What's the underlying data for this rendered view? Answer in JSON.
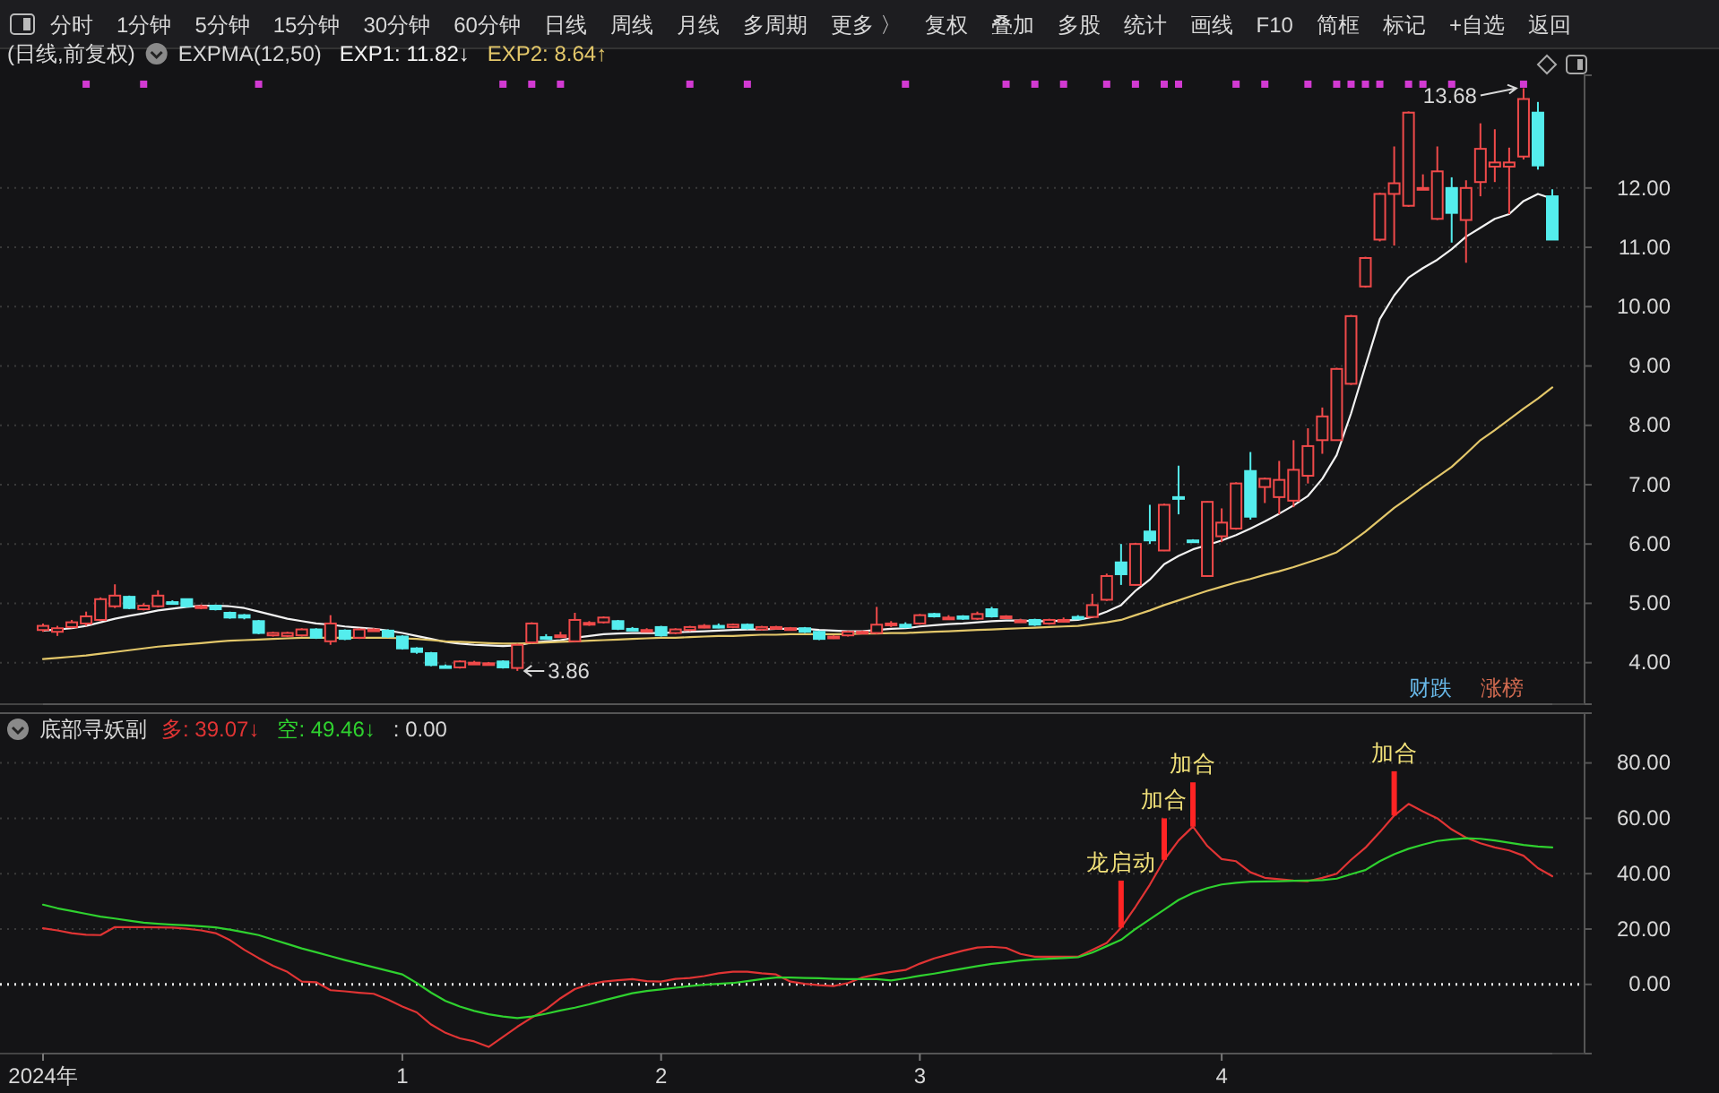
{
  "chart_data": [
    {
      "type": "other",
      "annotations": [
        "分时",
        "1分钟",
        "5分钟",
        "15分钟",
        "30分钟",
        "60分钟",
        "日线",
        "周线",
        "月线",
        "多周期",
        "更多 〉",
        "复权",
        "叠加",
        "多股",
        "统计",
        "画线",
        "F10",
        "简框",
        "标记",
        "+自选",
        "返回"
      ]
    },
    {
      "type": "candlestick",
      "title": "(日线,前复权)",
      "subtitle": "EXPMA(12,50)",
      "legend": "top left",
      "grid": "y",
      "tick_labels": "y",
      "categories": [
        null,
        null,
        null,
        null,
        null,
        null,
        null,
        null,
        null,
        null,
        null,
        null,
        null,
        null,
        null,
        null,
        null,
        null,
        null,
        null,
        null,
        null,
        null,
        null,
        null,
        null,
        null,
        null,
        null,
        null,
        null,
        null,
        null,
        null,
        null,
        null,
        null,
        null,
        null,
        null,
        null,
        null,
        null,
        null,
        null,
        null,
        null,
        null,
        null,
        null,
        null,
        null,
        null,
        null,
        null,
        null,
        null,
        null,
        null,
        null,
        null,
        null,
        null,
        null,
        null,
        null,
        null,
        null,
        null,
        null,
        null,
        null,
        null,
        null,
        null,
        null,
        null,
        null,
        null,
        null,
        null,
        null,
        null,
        null,
        null,
        null,
        null,
        null,
        null,
        null,
        null,
        null,
        null,
        null,
        null,
        null,
        null,
        null,
        null,
        null,
        null,
        null,
        null,
        null,
        null,
        null
      ],
      "ylim": [
        3.3,
        13.9
      ],
      "yticks": [
        {
          "value": 4,
          "label": "4.00"
        },
        {
          "value": 5,
          "label": "5.00"
        },
        {
          "value": 6,
          "label": "6.00"
        },
        {
          "value": 7,
          "label": "7.00"
        },
        {
          "value": 8,
          "label": "8.00"
        },
        {
          "value": 9,
          "label": "9.00"
        },
        {
          "value": 10,
          "label": "10.00"
        },
        {
          "value": 11,
          "label": "11.00"
        },
        {
          "value": 12,
          "label": "12.00"
        }
      ],
      "ohlc": [
        [
          4.55,
          4.66,
          4.52,
          4.62
        ],
        [
          4.52,
          4.62,
          4.45,
          4.58
        ],
        [
          4.6,
          4.72,
          4.58,
          4.68
        ],
        [
          4.66,
          4.86,
          4.62,
          4.78
        ],
        [
          4.72,
          5.1,
          4.7,
          5.07
        ],
        [
          4.95,
          5.32,
          4.92,
          5.13
        ],
        [
          5.11,
          5.13,
          4.9,
          4.92
        ],
        [
          4.9,
          5.0,
          4.88,
          4.96
        ],
        [
          4.95,
          5.22,
          4.93,
          5.13
        ],
        [
          5.02,
          5.05,
          4.98,
          5.01
        ],
        [
          5.07,
          5.08,
          4.93,
          4.95
        ],
        [
          4.92,
          4.98,
          4.9,
          4.95
        ],
        [
          4.96,
          4.98,
          4.88,
          4.9
        ],
        [
          4.84,
          4.86,
          4.74,
          4.76
        ],
        [
          4.8,
          4.82,
          4.73,
          4.76
        ],
        [
          4.7,
          4.72,
          4.48,
          4.5
        ],
        [
          4.46,
          4.52,
          4.44,
          4.5
        ],
        [
          4.45,
          4.52,
          4.43,
          4.5
        ],
        [
          4.46,
          4.58,
          4.44,
          4.56
        ],
        [
          4.56,
          4.58,
          4.4,
          4.42
        ],
        [
          4.36,
          4.8,
          4.3,
          4.66
        ],
        [
          4.54,
          4.56,
          4.38,
          4.4
        ],
        [
          4.42,
          4.58,
          4.4,
          4.56
        ],
        [
          4.55,
          4.58,
          4.53,
          4.56
        ],
        [
          4.54,
          4.56,
          4.42,
          4.44
        ],
        [
          4.44,
          4.46,
          4.22,
          4.24
        ],
        [
          4.24,
          4.26,
          4.15,
          4.18
        ],
        [
          4.16,
          4.18,
          3.94,
          3.96
        ],
        [
          3.94,
          3.97,
          3.91,
          3.93
        ],
        [
          3.92,
          4.04,
          3.9,
          4.02
        ],
        [
          3.99,
          4.03,
          3.97,
          4.0
        ],
        [
          3.97,
          4.01,
          3.95,
          3.99
        ],
        [
          4.02,
          4.04,
          3.9,
          3.92
        ],
        [
          3.91,
          4.32,
          3.86,
          4.3
        ],
        [
          4.34,
          4.68,
          4.32,
          4.66
        ],
        [
          4.43,
          4.48,
          4.39,
          4.42
        ],
        [
          4.45,
          4.52,
          4.42,
          4.46
        ],
        [
          4.36,
          4.84,
          4.34,
          4.72
        ],
        [
          4.66,
          4.7,
          4.62,
          4.67
        ],
        [
          4.68,
          4.78,
          4.66,
          4.76
        ],
        [
          4.7,
          4.72,
          4.55,
          4.57
        ],
        [
          4.57,
          4.6,
          4.54,
          4.56
        ],
        [
          4.54,
          4.58,
          4.52,
          4.55
        ],
        [
          4.6,
          4.62,
          4.44,
          4.46
        ],
        [
          4.5,
          4.58,
          4.48,
          4.56
        ],
        [
          4.55,
          4.62,
          4.53,
          4.6
        ],
        [
          4.6,
          4.65,
          4.58,
          4.62
        ],
        [
          4.62,
          4.66,
          4.58,
          4.61
        ],
        [
          4.6,
          4.66,
          4.58,
          4.64
        ],
        [
          4.64,
          4.66,
          4.56,
          4.58
        ],
        [
          4.56,
          4.62,
          4.54,
          4.6
        ],
        [
          4.58,
          4.62,
          4.56,
          4.6
        ],
        [
          4.56,
          4.6,
          4.54,
          4.58
        ],
        [
          4.58,
          4.6,
          4.5,
          4.52
        ],
        [
          4.52,
          4.54,
          4.38,
          4.4
        ],
        [
          4.42,
          4.46,
          4.4,
          4.44
        ],
        [
          4.46,
          4.54,
          4.44,
          4.52
        ],
        [
          4.5,
          4.54,
          4.48,
          4.52
        ],
        [
          4.5,
          4.94,
          4.48,
          4.64
        ],
        [
          4.64,
          4.7,
          4.6,
          4.66
        ],
        [
          4.64,
          4.68,
          4.58,
          4.6
        ],
        [
          4.66,
          4.82,
          4.64,
          4.8
        ],
        [
          4.82,
          4.84,
          4.76,
          4.78
        ],
        [
          4.74,
          4.8,
          4.72,
          4.76
        ],
        [
          4.78,
          4.8,
          4.72,
          4.74
        ],
        [
          4.74,
          4.86,
          4.72,
          4.82
        ],
        [
          4.9,
          4.94,
          4.76,
          4.78
        ],
        [
          4.76,
          4.8,
          4.74,
          4.78
        ],
        [
          4.7,
          4.74,
          4.68,
          4.71
        ],
        [
          4.72,
          4.74,
          4.62,
          4.64
        ],
        [
          4.66,
          4.74,
          4.64,
          4.72
        ],
        [
          4.7,
          4.76,
          4.68,
          4.72
        ],
        [
          4.77,
          4.8,
          4.74,
          4.76
        ],
        [
          4.77,
          5.16,
          4.77,
          4.97
        ],
        [
          5.06,
          5.5,
          5.04,
          5.46
        ],
        [
          5.69,
          6.0,
          5.31,
          5.49
        ],
        [
          5.31,
          6.02,
          5.3,
          6.0
        ],
        [
          6.21,
          6.66,
          6.0,
          6.06
        ],
        [
          5.89,
          6.68,
          5.88,
          6.66
        ],
        [
          6.79,
          7.32,
          6.5,
          6.78
        ],
        [
          6.06,
          6.08,
          6.04,
          6.05
        ],
        [
          5.46,
          6.72,
          5.45,
          6.71
        ],
        [
          6.13,
          6.6,
          6.03,
          6.36
        ],
        [
          6.26,
          7.04,
          6.24,
          7.02
        ],
        [
          7.23,
          7.55,
          6.41,
          6.46
        ],
        [
          6.96,
          7.12,
          6.69,
          7.1
        ],
        [
          6.79,
          7.4,
          6.5,
          7.08
        ],
        [
          6.73,
          7.75,
          6.62,
          7.25
        ],
        [
          7.15,
          7.95,
          7.02,
          7.65
        ],
        [
          7.75,
          8.3,
          7.52,
          8.15
        ],
        [
          7.75,
          8.97,
          7.74,
          8.95
        ],
        [
          8.7,
          9.86,
          8.68,
          9.84
        ],
        [
          10.34,
          10.84,
          10.32,
          10.82
        ],
        [
          11.13,
          11.92,
          11.1,
          11.9
        ],
        [
          11.9,
          12.7,
          11.03,
          12.08
        ],
        [
          11.7,
          13.29,
          11.68,
          13.27
        ],
        [
          12.0,
          12.23,
          12.0,
          12.0
        ],
        [
          11.48,
          12.7,
          11.46,
          12.28
        ],
        [
          12.0,
          12.18,
          11.08,
          11.58
        ],
        [
          11.46,
          12.13,
          10.74,
          12.0
        ],
        [
          12.1,
          13.09,
          11.86,
          12.66
        ],
        [
          12.36,
          12.99,
          12.1,
          12.43
        ],
        [
          12.36,
          12.68,
          11.56,
          12.43
        ],
        [
          12.53,
          13.68,
          12.48,
          13.5
        ],
        [
          13.27,
          13.45,
          12.31,
          12.38
        ],
        [
          11.86,
          11.98,
          11.12,
          11.13
        ]
      ],
      "series": [
        {
          "type": "line",
          "name": "EXP1: 11.82↓",
          "color": "#f2f2f2",
          "values": [
            4.54,
            4.56,
            4.58,
            4.62,
            4.68,
            4.74,
            4.79,
            4.83,
            4.88,
            4.91,
            4.94,
            4.96,
            4.96,
            4.95,
            4.92,
            4.86,
            4.8,
            4.74,
            4.7,
            4.66,
            4.64,
            4.61,
            4.59,
            4.57,
            4.54,
            4.5,
            4.45,
            4.4,
            4.35,
            4.32,
            4.3,
            4.29,
            4.28,
            4.29,
            4.34,
            4.36,
            4.38,
            4.42,
            4.45,
            4.48,
            4.49,
            4.5,
            4.5,
            4.5,
            4.51,
            4.52,
            4.53,
            4.54,
            4.55,
            4.56,
            4.56,
            4.57,
            4.57,
            4.57,
            4.55,
            4.54,
            4.53,
            4.53,
            4.55,
            4.57,
            4.58,
            4.61,
            4.63,
            4.65,
            4.66,
            4.68,
            4.7,
            4.71,
            4.71,
            4.7,
            4.7,
            4.71,
            4.72,
            4.77,
            4.86,
            4.97,
            5.21,
            5.4,
            5.66,
            5.8,
            5.91,
            5.98,
            6.06,
            6.15,
            6.26,
            6.38,
            6.51,
            6.65,
            6.81,
            7.1,
            7.5,
            8.2,
            9.0,
            9.79,
            10.19,
            10.49,
            10.65,
            10.79,
            10.97,
            11.18,
            11.33,
            11.48,
            11.56,
            11.78,
            11.9,
            11.82
          ]
        },
        {
          "type": "line",
          "name": "EXP2: 8.64↑",
          "color": "#e3c76a",
          "values": [
            4.06,
            4.08,
            4.1,
            4.12,
            4.15,
            4.18,
            4.21,
            4.24,
            4.27,
            4.29,
            4.31,
            4.33,
            4.35,
            4.37,
            4.38,
            4.39,
            4.4,
            4.41,
            4.42,
            4.42,
            4.42,
            4.42,
            4.42,
            4.42,
            4.42,
            4.41,
            4.4,
            4.38,
            4.36,
            4.35,
            4.34,
            4.33,
            4.32,
            4.32,
            4.33,
            4.34,
            4.35,
            4.36,
            4.37,
            4.38,
            4.39,
            4.4,
            4.41,
            4.42,
            4.42,
            4.43,
            4.44,
            4.45,
            4.45,
            4.46,
            4.47,
            4.47,
            4.48,
            4.48,
            4.48,
            4.48,
            4.48,
            4.49,
            4.49,
            4.5,
            4.5,
            4.51,
            4.52,
            4.53,
            4.54,
            4.55,
            4.56,
            4.57,
            4.58,
            4.59,
            4.6,
            4.61,
            4.62,
            4.65,
            4.68,
            4.72,
            4.8,
            4.88,
            4.97,
            5.05,
            5.13,
            5.21,
            5.28,
            5.35,
            5.41,
            5.48,
            5.54,
            5.61,
            5.69,
            5.77,
            5.86,
            6.03,
            6.21,
            6.41,
            6.61,
            6.78,
            6.96,
            7.13,
            7.3,
            7.52,
            7.75,
            7.92,
            8.1,
            8.28,
            8.45,
            8.64
          ]
        },
        {
          "type": "scatter",
          "marker": "square",
          "color": "#d23ad2",
          "values": [
            null,
            null,
            null,
            13.75,
            null,
            null,
            null,
            13.75,
            null,
            null,
            null,
            null,
            null,
            null,
            null,
            13.75,
            null,
            null,
            null,
            null,
            null,
            null,
            null,
            null,
            null,
            null,
            null,
            null,
            null,
            null,
            null,
            null,
            13.75,
            null,
            13.75,
            null,
            13.75,
            null,
            null,
            null,
            null,
            null,
            null,
            null,
            null,
            13.75,
            null,
            null,
            null,
            13.75,
            null,
            null,
            null,
            null,
            null,
            null,
            null,
            null,
            null,
            null,
            13.75,
            null,
            null,
            null,
            null,
            null,
            null,
            13.75,
            null,
            13.75,
            null,
            13.75,
            null,
            null,
            13.75,
            null,
            13.75,
            null,
            13.75,
            13.75,
            null,
            null,
            null,
            13.75,
            null,
            13.75,
            null,
            null,
            13.75,
            null,
            13.75,
            13.75,
            13.75,
            13.75,
            null,
            13.75,
            13.75,
            null,
            13.75,
            null,
            null,
            null,
            null,
            13.75,
            null,
            null
          ]
        }
      ],
      "annotations": [
        "13.68",
        "3.86",
        "财跌",
        "涨榜"
      ]
    },
    {
      "type": "line",
      "title": "底部寻妖副",
      "legend": "top left",
      "grid": "y",
      "categories": [
        "2024年",
        null,
        null,
        null,
        null,
        null,
        null,
        null,
        null,
        null,
        null,
        null,
        null,
        null,
        null,
        null,
        null,
        null,
        null,
        null,
        null,
        null,
        null,
        null,
        null,
        "1",
        null,
        null,
        null,
        null,
        null,
        null,
        null,
        null,
        null,
        null,
        null,
        null,
        null,
        null,
        null,
        null,
        null,
        "2",
        null,
        null,
        null,
        null,
        null,
        null,
        null,
        null,
        null,
        null,
        null,
        null,
        null,
        null,
        null,
        null,
        null,
        "3",
        null,
        null,
        null,
        null,
        null,
        null,
        null,
        null,
        null,
        null,
        null,
        null,
        null,
        null,
        null,
        null,
        null,
        null,
        null,
        null,
        "4",
        null,
        null,
        null,
        null,
        null,
        null,
        null,
        null,
        null,
        null,
        null,
        null,
        null,
        null,
        null,
        null,
        null,
        null,
        null,
        null,
        null,
        null,
        null
      ],
      "ylim": [
        -25,
        98
      ],
      "yticks": [
        {
          "value": 0,
          "label": "0.00"
        },
        {
          "value": 20,
          "label": "20.00"
        },
        {
          "value": 40,
          "label": "40.00"
        },
        {
          "value": 60,
          "label": "60.00"
        },
        {
          "value": 80,
          "label": "80.00"
        }
      ],
      "ref_lines": [
        {
          "axis": "y",
          "value": 0,
          "color": "#e8e8e8",
          "line_style": "dotted"
        }
      ],
      "series": [
        {
          "name": "多: 39.07↓",
          "color": "#e03434",
          "values": [
            20.3,
            19.5,
            18.5,
            17.9,
            17.8,
            20.7,
            20.7,
            20.7,
            20.6,
            20.5,
            20.1,
            19.5,
            18.5,
            16.0,
            12.5,
            9.5,
            6.7,
            4.5,
            1.0,
            0.8,
            -2.1,
            -2.5,
            -3.0,
            -3.4,
            -5.5,
            -8,
            -10.1,
            -14.5,
            -17.5,
            -19.5,
            -20.6,
            -22.6,
            -19,
            -15.3,
            -12,
            -9,
            -5,
            -1.7,
            0,
            1,
            1.5,
            1.9,
            1.2,
            1.0,
            2,
            2.3,
            3.0,
            4.0,
            4.6,
            4.6,
            4.0,
            3.6,
            1.0,
            0.2,
            -0.3,
            -0.6,
            0.5,
            2.5,
            3.6,
            4.5,
            5.2,
            7.5,
            9.4,
            10.8,
            12.2,
            13.3,
            13.6,
            13.2,
            11.0,
            10,
            10,
            10,
            10,
            12.5,
            15,
            20.5,
            28,
            36,
            45,
            52,
            57,
            50,
            45.3,
            44.5,
            40.5,
            38.5,
            38,
            37.5,
            37.3,
            38.5,
            40,
            45,
            49.4,
            55,
            61,
            65.2,
            62.5,
            60,
            56,
            53,
            51,
            49.5,
            48.4,
            46.5,
            42,
            39.07
          ]
        },
        {
          "name": "空: 49.46↓",
          "color": "#2fd12f",
          "values": [
            28.8,
            27.5,
            26.5,
            25.5,
            24.5,
            23.8,
            23,
            22.3,
            21.9,
            21.6,
            21.3,
            21,
            20.6,
            19.8,
            18.8,
            17.8,
            16.2,
            14.6,
            13,
            11.6,
            10.2,
            8.8,
            7.5,
            6.2,
            4.9,
            3.6,
            0.5,
            -3,
            -6,
            -8,
            -9.6,
            -10.8,
            -11.6,
            -12.2,
            -11.6,
            -10.6,
            -9.4,
            -8.4,
            -7.2,
            -5.8,
            -4.5,
            -3.2,
            -2.4,
            -1.8,
            -1.2,
            -0.6,
            -0.1,
            0.2,
            0.5,
            1.2,
            1.9,
            2.5,
            2.5,
            2.3,
            2.2,
            2.0,
            1.9,
            1.9,
            1.9,
            1.4,
            2.2,
            3.1,
            3.9,
            4.8,
            5.7,
            6.6,
            7.4,
            8.0,
            8.6,
            9.0,
            9.3,
            9.5,
            9.8,
            11.5,
            13.8,
            16.1,
            20,
            23.5,
            27,
            30.5,
            33,
            34.8,
            36.1,
            36.7,
            37.1,
            37.2,
            37.3,
            37.4,
            37.5,
            37.7,
            38.2,
            39.8,
            41.3,
            44.5,
            47,
            49,
            50.5,
            51.8,
            52.4,
            52.8,
            52.6,
            52,
            51.2,
            50.4,
            49.8,
            49.46
          ]
        },
        {
          "type": "bar",
          "color": "#ff2424",
          "values": [
            null,
            null,
            null,
            null,
            null,
            null,
            null,
            null,
            null,
            null,
            null,
            null,
            null,
            null,
            null,
            null,
            null,
            null,
            null,
            null,
            null,
            null,
            null,
            null,
            null,
            null,
            null,
            null,
            null,
            null,
            null,
            null,
            null,
            null,
            null,
            null,
            null,
            null,
            null,
            null,
            null,
            null,
            null,
            null,
            null,
            null,
            null,
            null,
            null,
            null,
            null,
            null,
            null,
            null,
            null,
            null,
            null,
            null,
            null,
            null,
            null,
            null,
            null,
            null,
            null,
            null,
            null,
            null,
            null,
            null,
            null,
            null,
            null,
            null,
            null,
            17,
            null,
            null,
            15,
            null,
            16,
            null,
            null,
            null,
            null,
            null,
            null,
            null,
            null,
            null,
            null,
            null,
            null,
            null,
            16,
            null,
            null,
            null,
            null,
            null,
            null,
            null,
            null,
            null,
            null,
            null
          ],
          "base": [
            null,
            null,
            null,
            null,
            null,
            null,
            null,
            null,
            null,
            null,
            null,
            null,
            null,
            null,
            null,
            null,
            null,
            null,
            null,
            null,
            null,
            null,
            null,
            null,
            null,
            null,
            null,
            null,
            null,
            null,
            null,
            null,
            null,
            null,
            null,
            null,
            null,
            null,
            null,
            null,
            null,
            null,
            null,
            null,
            null,
            null,
            null,
            null,
            null,
            null,
            null,
            null,
            null,
            null,
            null,
            null,
            null,
            null,
            null,
            null,
            null,
            null,
            null,
            null,
            null,
            null,
            null,
            null,
            null,
            null,
            null,
            null,
            null,
            null,
            null,
            20.5,
            null,
            null,
            45,
            null,
            57,
            null,
            null,
            null,
            null,
            null,
            null,
            null,
            null,
            null,
            null,
            null,
            null,
            null,
            61,
            null,
            null,
            null,
            null,
            null,
            null,
            null,
            null,
            null,
            null,
            null
          ],
          "value_labels": [
            null,
            null,
            null,
            null,
            null,
            null,
            null,
            null,
            null,
            null,
            null,
            null,
            null,
            null,
            null,
            null,
            null,
            null,
            null,
            null,
            null,
            null,
            null,
            null,
            null,
            null,
            null,
            null,
            null,
            null,
            null,
            null,
            null,
            null,
            null,
            null,
            null,
            null,
            null,
            null,
            null,
            null,
            null,
            null,
            null,
            null,
            null,
            null,
            null,
            null,
            null,
            null,
            null,
            null,
            null,
            null,
            null,
            null,
            null,
            null,
            null,
            null,
            null,
            null,
            null,
            null,
            null,
            null,
            null,
            null,
            null,
            null,
            null,
            null,
            null,
            "龙启动",
            null,
            null,
            "加合",
            null,
            "加合",
            null,
            null,
            null,
            null,
            null,
            null,
            null,
            null,
            null,
            null,
            null,
            null,
            null,
            "加合",
            null,
            null,
            null,
            null,
            null,
            null,
            null,
            null,
            null,
            null,
            null
          ]
        }
      ],
      "annotations": [
        ": 0.00"
      ]
    }
  ]
}
